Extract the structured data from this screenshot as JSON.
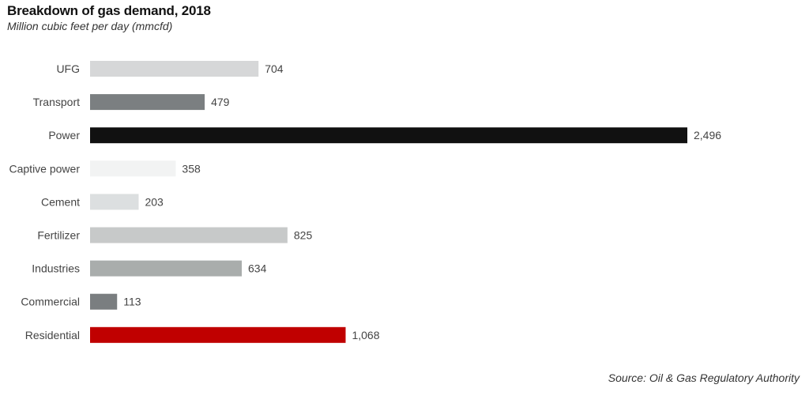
{
  "chart_data": {
    "type": "bar",
    "orientation": "horizontal",
    "title": "Breakdown of gas demand, 2018",
    "subtitle": "Million cubic feet per day (mmcfd)",
    "source": "Source: Oil & Gas Regulatory Authority",
    "categories": [
      "UFG",
      "Transport",
      "Power",
      "Captive power",
      "Cement",
      "Fertilizer",
      "Industries",
      "Commercial",
      "Residential"
    ],
    "values": [
      704,
      479,
      2496,
      358,
      203,
      825,
      634,
      113,
      1068
    ],
    "value_labels": [
      "704",
      "479",
      "2,496",
      "358",
      "203",
      "825",
      "634",
      "113",
      "1,068"
    ],
    "colors": [
      "#d6d7d8",
      "#7b7f81",
      "#111111",
      "#f2f3f3",
      "#dcdfe0",
      "#c7c9c9",
      "#a9adac",
      "#7a7e80",
      "#c00000"
    ],
    "xlim": [
      0,
      2496
    ],
    "grid": false,
    "legend": "none"
  }
}
